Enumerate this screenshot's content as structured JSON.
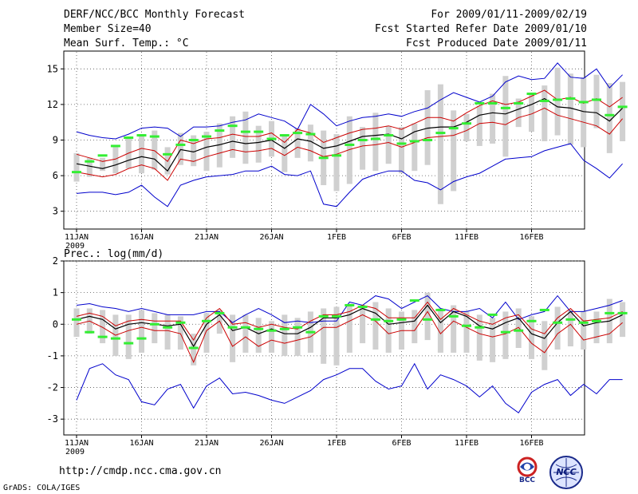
{
  "header": {
    "left": [
      "DERF/NCC/BCC Monthly Forecast",
      "Member Size=40",
      "Mean Surf. Temp.: °C"
    ],
    "right": [
      "For 2009/01/11-2009/02/19",
      "Fcst Started Refer Date 2009/01/10",
      "Fcst Produced Date 2009/01/11"
    ]
  },
  "footer": {
    "url": "http://cmdp.ncc.cma.gov.cn",
    "grads": "GrADS: COLA/IGES",
    "logo_bcc": "BCC",
    "logo_ncc": "NCC"
  },
  "colors": {
    "spread": "#0000cc",
    "sd_band": "#cc0000",
    "ens_mean": "#000000",
    "box": "#d0d0d0",
    "member_mark": "#33ee33",
    "grid": "#555555"
  },
  "chart_data": [
    {
      "type": "line",
      "title": "Mean Surf. Temp.: °C",
      "x_ticks": [
        "11JAN",
        "16JAN",
        "21JAN",
        "26JAN",
        "1FEB",
        "6FEB",
        "11FEB",
        "16FEB"
      ],
      "x_subtick": "2009",
      "ylim": [
        1.5,
        16.5
      ],
      "yticks": [
        3,
        6,
        9,
        12,
        15
      ],
      "ytick_labels": [
        "3",
        "6",
        "9",
        "12",
        "15"
      ],
      "series": [
        {
          "name": "max",
          "values": [
            9.7,
            9.4,
            9.2,
            9.1,
            9.5,
            10,
            10.1,
            10,
            9.3,
            10.1,
            10.1,
            10.2,
            10.5,
            10.7,
            11.2,
            10.9,
            10.6,
            9.9,
            12,
            11.2,
            10.2,
            10.6,
            10.9,
            11,
            11.2,
            11,
            11.4,
            11.7,
            12.4,
            13,
            12.6,
            12.2,
            12.7,
            13.9,
            14.4,
            14.1,
            14.2,
            15.5,
            14.3,
            14.2,
            15,
            13.4,
            14.5
          ]
        },
        {
          "name": "plus_sd",
          "values": [
            7.8,
            7.5,
            7.2,
            7.4,
            7.9,
            8.3,
            8.1,
            7.2,
            9,
            8.7,
            9.1,
            9.2,
            9.5,
            9.3,
            9.3,
            9.6,
            8.8,
            9.9,
            9.6,
            8.8,
            9.2,
            9.6,
            9.9,
            10,
            10.2,
            9.9,
            10.4,
            10.9,
            10.9,
            10.6,
            11.3,
            11.9,
            12.3,
            12,
            12.2,
            12.7,
            13.2,
            12.4,
            12.6,
            12.1,
            12.5,
            11.8,
            12.6
          ]
        },
        {
          "name": "mean",
          "values": [
            7,
            6.8,
            6.6,
            6.9,
            7.3,
            7.6,
            7.4,
            6.4,
            8.2,
            8,
            8.4,
            8.6,
            8.9,
            8.7,
            8.8,
            9,
            8.3,
            9.1,
            8.9,
            8.3,
            8.5,
            8.9,
            9.3,
            9.4,
            9.5,
            9.1,
            9.7,
            10,
            10.1,
            10.1,
            10.5,
            11.1,
            11.3,
            11.2,
            11.6,
            12,
            12.5,
            11.8,
            11.7,
            11.4,
            11.3,
            10.6,
            11.7
          ]
        },
        {
          "name": "minus_sd",
          "values": [
            6.3,
            6.1,
            5.9,
            6.1,
            6.6,
            6.9,
            6.6,
            5.6,
            7.4,
            7.2,
            7.6,
            7.9,
            8.2,
            8,
            8.1,
            8.3,
            7.7,
            8.4,
            8.1,
            7.6,
            7.8,
            8.2,
            8.5,
            8.6,
            8.8,
            8.4,
            8.8,
            9.2,
            9.3,
            9.4,
            9.8,
            10.4,
            10.5,
            10.3,
            10.9,
            11.2,
            11.7,
            11.1,
            10.8,
            10.5,
            10.2,
            9.5,
            10.8
          ]
        },
        {
          "name": "min",
          "values": [
            4.5,
            4.6,
            4.6,
            4.4,
            4.6,
            5.2,
            4.2,
            3.4,
            5.2,
            5.6,
            5.9,
            6,
            6.1,
            6.4,
            6.4,
            6.8,
            6.1,
            6,
            6.4,
            3.6,
            3.4,
            4.6,
            5.7,
            6.1,
            6.4,
            6.4,
            5.6,
            5.4,
            4.8,
            5.5,
            5.9,
            6.2,
            6.8,
            7.4,
            7.5,
            7.6,
            8.1,
            8.4,
            8.7,
            7.3,
            6.6,
            5.8,
            7
          ]
        },
        {
          "name": "box_top",
          "values": [
            7.9,
            7.5,
            7.5,
            8.4,
            9.3,
            9.5,
            9.8,
            8.4,
            9.6,
            9.4,
            9.7,
            10.4,
            11,
            11.4,
            10.2,
            10.6,
            9.5,
            10,
            10.3,
            9.8,
            9.5,
            11,
            10.1,
            11.3,
            10.2,
            10.1,
            10.4,
            13.2,
            13.7,
            11.5,
            11.2,
            11.9,
            12.9,
            14.4,
            12.5,
            13,
            13.6,
            15.1,
            14.6,
            14.3,
            14.5,
            13.8,
            13.9
          ]
        },
        {
          "name": "box_bottom",
          "values": [
            5.5,
            5.9,
            6.4,
            6.2,
            6.6,
            6.2,
            6.5,
            6.1,
            6.9,
            6.8,
            6.4,
            6.7,
            7.5,
            7,
            7.1,
            7.6,
            6.3,
            7.5,
            7.2,
            5.2,
            4.7,
            5.3,
            6.5,
            6.4,
            7,
            6.2,
            6.4,
            6.9,
            3.6,
            4.7,
            8.9,
            8.5,
            8.7,
            7.6,
            10.1,
            9.7,
            8.9,
            9.4,
            8.6,
            8.4,
            10,
            7.9,
            8.9
          ]
        },
        {
          "name": "member",
          "values": [
            6.3,
            7.2,
            7.7,
            8.5,
            9.2,
            9.4,
            9.3,
            7.8,
            8.6,
            9,
            9.3,
            9.8,
            10.2,
            9.7,
            9.7,
            9.1,
            9.4,
            9.6,
            9.5,
            7.5,
            7.7,
            8.6,
            9,
            9.1,
            9.4,
            8.7,
            8.9,
            9,
            9.6,
            10,
            10.4,
            12.1,
            12.1,
            11.7,
            12.1,
            12.9,
            12.3,
            12.4,
            12.5,
            12.2,
            12.4,
            11.1,
            11.8
          ]
        }
      ]
    },
    {
      "type": "line",
      "title": "Prec.: log(mm/d)",
      "x_ticks": [
        "11JAN",
        "16JAN",
        "21JAN",
        "26JAN",
        "1FEB",
        "6FEB",
        "11FEB",
        "16FEB"
      ],
      "x_subtick": "2009",
      "ylim": [
        -3.5,
        2
      ],
      "yticks": [
        -3,
        -2,
        -1,
        0,
        1,
        2
      ],
      "ytick_labels": [
        "-3",
        "-2",
        "-1",
        "0",
        "1",
        "2"
      ],
      "series": [
        {
          "name": "max",
          "values": [
            0.6,
            0.65,
            0.55,
            0.5,
            0.4,
            0.5,
            0.4,
            0.3,
            0.3,
            0.3,
            0.4,
            0.4,
            0.05,
            0.3,
            0.5,
            0.3,
            0.05,
            0.1,
            0.05,
            0.1,
            0.1,
            0.7,
            0.6,
            0.9,
            0.8,
            0.5,
            0.7,
            0.9,
            0.5,
            0.4,
            0.4,
            0.5,
            0.2,
            0.7,
            0.15,
            0.3,
            0.4,
            0.9,
            0.4,
            0.4,
            0.5,
            0.6,
            0.75
          ]
        },
        {
          "name": "plus_sd",
          "values": [
            0.25,
            0.35,
            0.25,
            -0.05,
            0.1,
            0.15,
            0.1,
            0.1,
            0.1,
            -0.5,
            0.2,
            0.5,
            0,
            0.05,
            -0.1,
            0,
            -0.1,
            -0.15,
            0.1,
            0.3,
            0.3,
            0.4,
            0.6,
            0.5,
            0.2,
            0.2,
            0.2,
            0.7,
            0.15,
            0.5,
            0.3,
            0.1,
            0,
            0.2,
            0.3,
            -0.15,
            -0.3,
            0.2,
            0.5,
            0.1,
            0.15,
            0.2,
            0.4
          ]
        },
        {
          "name": "mean",
          "values": [
            0.15,
            0.25,
            0.15,
            -0.15,
            0,
            0.05,
            0,
            -0.05,
            0,
            -0.7,
            0,
            0.3,
            -0.2,
            -0.1,
            -0.3,
            -0.15,
            -0.3,
            -0.3,
            -0.1,
            0.2,
            0.2,
            0.3,
            0.5,
            0.35,
            0,
            0.05,
            0.1,
            0.6,
            0.05,
            0.4,
            0.25,
            -0.05,
            -0.15,
            0.05,
            0.2,
            -0.3,
            -0.45,
            0.05,
            0.4,
            -0.05,
            0.05,
            0.1,
            0.3
          ]
        },
        {
          "name": "minus_sd",
          "values": [
            0,
            0.1,
            -0.1,
            -0.35,
            -0.2,
            -0.1,
            -0.2,
            -0.2,
            -0.3,
            -1.2,
            -0.2,
            0.1,
            -0.7,
            -0.4,
            -0.7,
            -0.5,
            -0.6,
            -0.5,
            -0.4,
            -0.1,
            -0.1,
            0.1,
            0.3,
            0.1,
            -0.3,
            -0.2,
            -0.2,
            0.4,
            -0.3,
            0.1,
            -0.1,
            -0.3,
            -0.4,
            -0.3,
            -0.1,
            -0.6,
            -0.9,
            -0.3,
            0,
            -0.5,
            -0.4,
            -0.3,
            0.05
          ]
        },
        {
          "name": "min",
          "values": [
            -2.4,
            -1.4,
            -1.25,
            -1.6,
            -1.75,
            -2.45,
            -2.55,
            -2.05,
            -1.9,
            -2.65,
            -1.95,
            -1.7,
            -2.2,
            -2.15,
            -2.25,
            -2.4,
            -2.5,
            -2.3,
            -2.1,
            -1.75,
            -1.6,
            -1.4,
            -1.4,
            -1.8,
            -2.05,
            -1.95,
            -1.25,
            -2.05,
            -1.6,
            -1.75,
            -1.95,
            -2.3,
            -1.95,
            -2.5,
            -2.8,
            -2.15,
            -1.9,
            -1.75,
            -2.25,
            -1.9,
            -2.2,
            -1.75,
            -1.75
          ]
        },
        {
          "name": "box_top",
          "values": [
            0.5,
            0.5,
            0.45,
            0.3,
            0.3,
            0.45,
            0.35,
            0.3,
            0.25,
            -0.3,
            0.35,
            0.45,
            0.3,
            0.3,
            0.2,
            0.1,
            0.3,
            0.2,
            0.4,
            0.5,
            0.55,
            0.65,
            0.6,
            0.7,
            0.5,
            0.4,
            0.45,
            1,
            0.5,
            0.6,
            0.4,
            0.3,
            0.2,
            0.4,
            0.5,
            0.25,
            0.1,
            0.55,
            0.45,
            0.4,
            0.4,
            0.8,
            0.7
          ]
        },
        {
          "name": "box_bottom",
          "values": [
            -0.4,
            -0.3,
            -0.6,
            -1,
            -1.1,
            -0.9,
            -0.6,
            -0.8,
            -0.8,
            -1.3,
            -0.9,
            -0.3,
            -1.2,
            -0.9,
            -0.9,
            -0.9,
            -1,
            -1,
            -0.9,
            -1.25,
            -1.3,
            -0.9,
            -0.6,
            -0.8,
            -0.9,
            -0.8,
            -0.6,
            -0.5,
            -0.9,
            -0.9,
            -0.9,
            -1.15,
            -1.2,
            -1.1,
            -0.75,
            -1.1,
            -1.45,
            -0.8,
            -0.7,
            -0.8,
            -0.6,
            -0.6,
            -0.4
          ]
        },
        {
          "name": "member",
          "values": [
            0.15,
            -0.25,
            -0.4,
            -0.45,
            -0.6,
            -0.45,
            0,
            -0.1,
            0.05,
            -0.75,
            0.1,
            0.35,
            -0.1,
            -0.1,
            -0.15,
            -0.2,
            -0.15,
            -0.1,
            -0.25,
            0.25,
            0.25,
            0.6,
            0.55,
            0.15,
            0.1,
            0.15,
            0.75,
            0.15,
            0.45,
            0.25,
            -0.05,
            -0.1,
            0.3,
            -0.25,
            -0.2,
            0.1,
            0.45,
            0.05,
            0.15,
            0.05,
            0.1,
            0.35,
            0.35
          ]
        }
      ]
    }
  ]
}
